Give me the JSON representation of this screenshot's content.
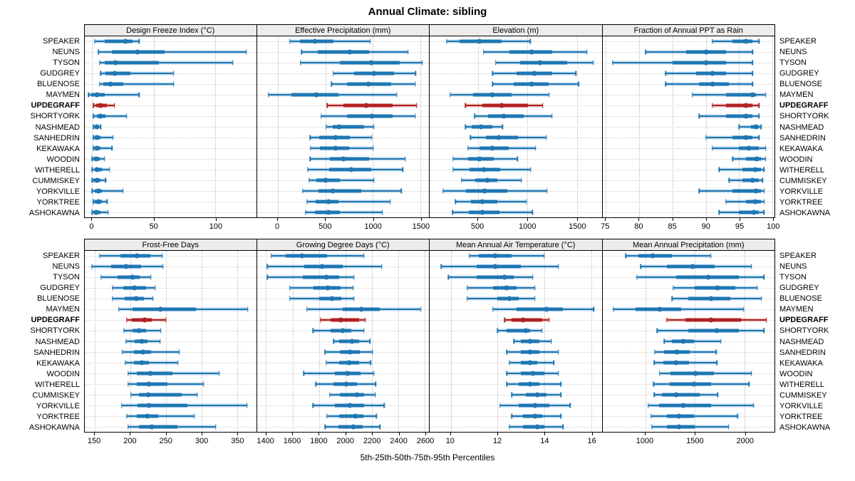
{
  "title": "Annual Climate: sibling",
  "footer": {
    "axis_caption": "5th-25th-50th-75th-95th Percentiles"
  },
  "colors": {
    "series": "#1f77b4",
    "highlight": "#b22222",
    "strip_bg": "#ececec",
    "grid": "#c0c0c0",
    "border": "#000000"
  },
  "highlight_site": "UPDEGRAFF",
  "chart_data": {
    "type": "dotplot-percentiles",
    "percentile_levels": [
      5,
      25,
      50,
      75,
      95
    ],
    "legend_position": "none",
    "grid": "dotted",
    "sites": [
      "SPEAKER",
      "NEUNS",
      "TYSON",
      "GUDGREY",
      "BLUENOSE",
      "MAYMEN",
      "UPDEGRAFF",
      "SHORTYORK",
      "NASHMEAD",
      "SANHEDRIN",
      "KEKAWAKA",
      "WOODIN",
      "WITHERELL",
      "CUMMISKEY",
      "YORKVILLE",
      "YORKTREE",
      "ASHOKAWNA"
    ],
    "panels": [
      {
        "title": "Design Freeze Index (°C)",
        "row": "top",
        "xlim": [
          -6,
          133
        ],
        "ticks": [
          0,
          50,
          100
        ],
        "values": [
          [
            2,
            10,
            27,
            33,
            38
          ],
          [
            5,
            16,
            37,
            59,
            125
          ],
          [
            6,
            10,
            19,
            54,
            114
          ],
          [
            7,
            11,
            18,
            31,
            66
          ],
          [
            6,
            9,
            15,
            25,
            66
          ],
          [
            -3,
            -1,
            4,
            10,
            38
          ],
          [
            1,
            3,
            7,
            12,
            18
          ],
          [
            1,
            4,
            7,
            11,
            28
          ],
          [
            1,
            2,
            4,
            5,
            7
          ],
          [
            1,
            2,
            4,
            7,
            17
          ],
          [
            1,
            2,
            4,
            7,
            16
          ],
          [
            0,
            1,
            3,
            6,
            10
          ],
          [
            0,
            2,
            4,
            8,
            14
          ],
          [
            0,
            1,
            4,
            7,
            11
          ],
          [
            0,
            2,
            5,
            8,
            25
          ],
          [
            1,
            2,
            5,
            8,
            12
          ],
          [
            0,
            1,
            3,
            7,
            13
          ]
        ]
      },
      {
        "title": "Effective Precipitation (mm)",
        "row": "top",
        "xlim": [
          -220,
          1590
        ],
        "ticks": [
          0,
          500,
          1000,
          1500
        ],
        "values": [
          [
            125,
            235,
            390,
            585,
            975
          ],
          [
            250,
            420,
            760,
            960,
            1370
          ],
          [
            240,
            650,
            980,
            1280,
            1520
          ],
          [
            585,
            800,
            1010,
            1225,
            1450
          ],
          [
            565,
            725,
            955,
            1190,
            1445
          ],
          [
            -100,
            145,
            405,
            635,
            1250
          ],
          [
            520,
            690,
            930,
            1210,
            1460
          ],
          [
            455,
            730,
            990,
            1210,
            1445
          ],
          [
            510,
            575,
            645,
            905,
            1010
          ],
          [
            340,
            435,
            610,
            760,
            990
          ],
          [
            345,
            440,
            605,
            750,
            1005
          ],
          [
            340,
            550,
            690,
            960,
            1340
          ],
          [
            315,
            540,
            775,
            980,
            1315
          ],
          [
            330,
            405,
            500,
            655,
            1010
          ],
          [
            260,
            430,
            575,
            875,
            1300
          ],
          [
            305,
            400,
            535,
            640,
            1185
          ],
          [
            290,
            390,
            535,
            650,
            1100
          ]
        ]
      },
      {
        "title": "Elevation (m)",
        "row": "top",
        "xlim": [
          15,
          1750
        ],
        "ticks": [
          500,
          1000,
          1500
        ],
        "values": [
          [
            185,
            320,
            520,
            740,
            1030
          ],
          [
            560,
            820,
            1040,
            1250,
            1600
          ],
          [
            680,
            930,
            1130,
            1405,
            1665
          ],
          [
            650,
            895,
            1070,
            1250,
            1490
          ],
          [
            650,
            860,
            1045,
            1215,
            1520
          ],
          [
            220,
            450,
            650,
            840,
            1220
          ],
          [
            375,
            550,
            740,
            1010,
            1155
          ],
          [
            470,
            605,
            765,
            965,
            1250
          ],
          [
            375,
            440,
            535,
            650,
            750
          ],
          [
            425,
            585,
            710,
            905,
            1190
          ],
          [
            400,
            520,
            650,
            810,
            1085
          ],
          [
            250,
            405,
            520,
            665,
            900
          ],
          [
            250,
            415,
            560,
            725,
            1035
          ],
          [
            335,
            475,
            600,
            700,
            940
          ],
          [
            150,
            380,
            570,
            800,
            1200
          ],
          [
            275,
            430,
            550,
            700,
            990
          ],
          [
            245,
            410,
            545,
            720,
            1050
          ]
        ]
      },
      {
        "title": "Fraction of Annual PPT as Rain",
        "row": "top",
        "xlim": [
          74.5,
          100.3
        ],
        "ticks": [
          75,
          80,
          85,
          90,
          95,
          100
        ],
        "values": [
          [
            91,
            94,
            96,
            97,
            98
          ],
          [
            81,
            87,
            90,
            93,
            97
          ],
          [
            76,
            85,
            90,
            93,
            97
          ],
          [
            84,
            88.5,
            91,
            93,
            97
          ],
          [
            84,
            89,
            91,
            93.5,
            97
          ],
          [
            88,
            93,
            97,
            97.5,
            99
          ],
          [
            91,
            93,
            96,
            97,
            98
          ],
          [
            89,
            93,
            96,
            97,
            98
          ],
          [
            95,
            96.8,
            97.5,
            98,
            98.3
          ],
          [
            90,
            94,
            96,
            97,
            98
          ],
          [
            91,
            95,
            96.5,
            98,
            99
          ],
          [
            94,
            96,
            97.6,
            98.3,
            99
          ],
          [
            92,
            95.5,
            97.4,
            98.3,
            98.7
          ],
          [
            93.5,
            95.5,
            97,
            98,
            98.5
          ],
          [
            89,
            94,
            97.5,
            98.3,
            98.8
          ],
          [
            93,
            96,
            97.4,
            98.3,
            98.8
          ],
          [
            92,
            95,
            97.2,
            98,
            98.7
          ]
        ]
      },
      {
        "title": "Frost-Free Days",
        "row": "bottom",
        "xlim": [
          136,
          377
        ],
        "ticks": [
          150,
          200,
          250,
          300,
          350
        ],
        "values": [
          [
            157,
            186,
            209,
            228,
            245
          ],
          [
            146,
            173,
            194,
            215,
            246
          ],
          [
            159,
            182,
            203,
            213,
            229
          ],
          [
            175,
            190,
            206,
            222,
            235
          ],
          [
            175,
            192,
            208,
            219,
            232
          ],
          [
            184,
            203,
            242,
            292,
            365
          ],
          [
            195,
            202,
            220,
            230,
            250
          ],
          [
            191,
            203,
            212,
            222,
            243
          ],
          [
            194,
            206,
            216,
            224,
            242
          ],
          [
            189,
            205,
            218,
            229,
            269
          ],
          [
            193,
            205,
            216,
            226,
            267
          ],
          [
            197,
            209,
            228,
            259,
            325
          ],
          [
            197,
            209,
            226,
            252,
            303
          ],
          [
            201,
            212,
            225,
            272,
            294
          ],
          [
            188,
            210,
            226,
            280,
            364
          ],
          [
            195,
            209,
            224,
            239,
            290
          ],
          [
            197,
            212,
            230,
            266,
            320
          ]
        ]
      },
      {
        "title": "Growing Degree Days (°C)",
        "row": "bottom",
        "xlim": [
          1330,
          2632
        ],
        "ticks": [
          1400,
          1600,
          1800,
          2000,
          2200,
          2400,
          2600
        ],
        "values": [
          [
            1440,
            1550,
            1675,
            1860,
            2140
          ],
          [
            1410,
            1690,
            1825,
            1980,
            2275
          ],
          [
            1410,
            1680,
            1855,
            1955,
            2065
          ],
          [
            1580,
            1760,
            1865,
            1965,
            2060
          ],
          [
            1580,
            1800,
            1900,
            1970,
            2065
          ],
          [
            1710,
            1980,
            2120,
            2260,
            2570
          ],
          [
            1810,
            1890,
            1965,
            2105,
            2150
          ],
          [
            1755,
            1890,
            1980,
            2045,
            2140
          ],
          [
            1910,
            1950,
            2050,
            2105,
            2185
          ],
          [
            1845,
            1960,
            2035,
            2110,
            2205
          ],
          [
            1855,
            1950,
            2030,
            2105,
            2190
          ],
          [
            1685,
            1920,
            2020,
            2115,
            2215
          ],
          [
            1775,
            1910,
            2005,
            2085,
            2230
          ],
          [
            1880,
            1960,
            2090,
            2140,
            2225
          ],
          [
            1755,
            1920,
            2035,
            2140,
            2295
          ],
          [
            1860,
            1955,
            2075,
            2135,
            2235
          ],
          [
            1845,
            1945,
            2060,
            2130,
            2260
          ]
        ]
      },
      {
        "title": "Mean Annual Air Temperature (°C)",
        "row": "bottom",
        "xlim": [
          9.1,
          16.45
        ],
        "ticks": [
          10,
          12,
          14,
          16
        ],
        "values": [
          [
            10.8,
            11.2,
            11.9,
            12.6,
            14.0
          ],
          [
            9.6,
            11.1,
            11.9,
            13.0,
            14.6
          ],
          [
            9.9,
            11.1,
            12.3,
            12.7,
            13.5
          ],
          [
            10.7,
            11.8,
            12.4,
            12.8,
            13.6
          ],
          [
            10.7,
            12.0,
            12.5,
            12.9,
            13.6
          ],
          [
            11.8,
            12.8,
            14.1,
            14.8,
            16.1
          ],
          [
            12.3,
            12.6,
            13.1,
            13.9,
            14.2
          ],
          [
            12.0,
            12.4,
            13.2,
            13.4,
            13.9
          ],
          [
            12.7,
            13.0,
            13.4,
            13.8,
            14.3
          ],
          [
            12.4,
            13.0,
            13.4,
            13.8,
            14.6
          ],
          [
            12.5,
            13.0,
            13.4,
            13.7,
            14.4
          ],
          [
            12.4,
            13.0,
            13.5,
            14.0,
            14.6
          ],
          [
            12.4,
            12.9,
            13.4,
            13.8,
            14.7
          ],
          [
            12.6,
            13.2,
            13.7,
            14.1,
            14.7
          ],
          [
            12.1,
            12.9,
            13.6,
            14.2,
            15.1
          ],
          [
            12.6,
            13.1,
            13.6,
            13.9,
            14.7
          ],
          [
            12.5,
            13.1,
            13.7,
            14.0,
            14.8
          ]
        ]
      },
      {
        "title": "Mean Annual Precipitation (mm)",
        "row": "bottom",
        "xlim": [
          570,
          2300
        ],
        "ticks": [
          1000,
          1500,
          2000
        ],
        "values": [
          [
            805,
            935,
            1075,
            1270,
            1660
          ],
          [
            955,
            1215,
            1475,
            1700,
            2070
          ],
          [
            915,
            1310,
            1635,
            1945,
            2195
          ],
          [
            1280,
            1500,
            1730,
            1905,
            2125
          ],
          [
            1270,
            1430,
            1665,
            1855,
            2170
          ],
          [
            680,
            900,
            1150,
            1360,
            1990
          ],
          [
            1215,
            1405,
            1660,
            1960,
            2220
          ],
          [
            1120,
            1430,
            1720,
            1945,
            2195
          ],
          [
            1190,
            1265,
            1385,
            1490,
            1760
          ],
          [
            1095,
            1190,
            1320,
            1450,
            1715
          ],
          [
            1090,
            1180,
            1310,
            1440,
            1720
          ],
          [
            1145,
            1255,
            1505,
            1690,
            2070
          ],
          [
            1085,
            1250,
            1490,
            1665,
            2045
          ],
          [
            1090,
            1170,
            1310,
            1545,
            1730
          ],
          [
            1030,
            1140,
            1380,
            1665,
            2090
          ],
          [
            1060,
            1220,
            1340,
            1490,
            1930
          ],
          [
            1065,
            1220,
            1340,
            1500,
            1840
          ]
        ]
      }
    ]
  }
}
